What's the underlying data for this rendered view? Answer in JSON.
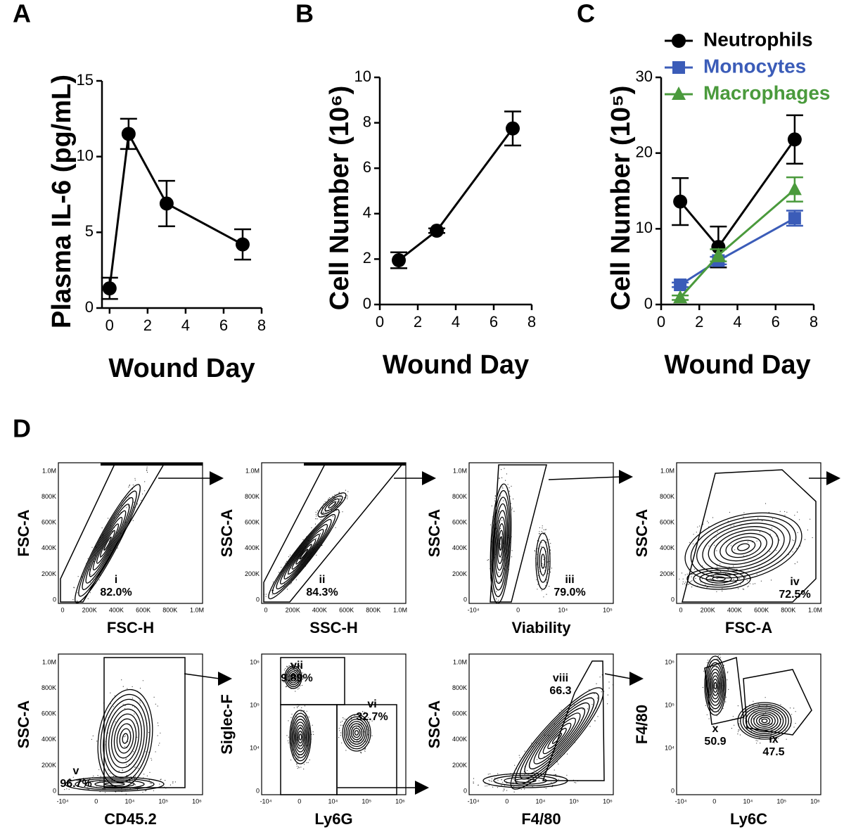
{
  "panel_labels": [
    "A",
    "B",
    "C",
    "D"
  ],
  "chart_data": [
    {
      "type": "line",
      "ylabel": "Plasma IL-6 (pg/mL)",
      "xlabel": "Wound Day",
      "x": [
        0,
        1,
        3,
        7
      ],
      "xlim": [
        -0.4,
        8
      ],
      "xticks": [
        0,
        2,
        4,
        6,
        8
      ],
      "ylim": [
        0,
        15
      ],
      "yticks": [
        0,
        5,
        10,
        15
      ],
      "series": [
        {
          "color": "#000000",
          "marker": "circle",
          "values": [
            1.3,
            11.5,
            6.9,
            4.2
          ],
          "errors": [
            0.7,
            1.0,
            1.5,
            1.0
          ]
        }
      ]
    },
    {
      "type": "line",
      "ylabel": "Cell Number (10⁶)",
      "xlabel": "Wound Day",
      "x": [
        1,
        3,
        7
      ],
      "xlim": [
        0,
        8
      ],
      "xticks": [
        0,
        2,
        4,
        6,
        8
      ],
      "ylim": [
        0,
        10
      ],
      "yticks": [
        0,
        2,
        4,
        6,
        8,
        10
      ],
      "series": [
        {
          "color": "#000000",
          "marker": "circle",
          "values": [
            1.95,
            3.25,
            7.75
          ],
          "errors": [
            0.35,
            0.1,
            0.75
          ]
        }
      ]
    },
    {
      "type": "line",
      "ylabel": "Cell Number (10⁵)",
      "xlabel": "Wound Day",
      "legend": "top-right",
      "x": [
        1,
        3,
        7
      ],
      "xlim": [
        0,
        8
      ],
      "xticks": [
        0,
        2,
        4,
        6,
        8
      ],
      "ylim": [
        0,
        30
      ],
      "yticks": [
        0,
        10,
        20,
        30
      ],
      "series": [
        {
          "name": "Neutrophils",
          "color": "#000000",
          "marker": "circle",
          "values": [
            13.6,
            7.6,
            21.8
          ],
          "errors": [
            3.1,
            2.7,
            3.2
          ]
        },
        {
          "name": "Monocytes",
          "color": "#3b5cb8",
          "marker": "square",
          "values": [
            2.6,
            5.8,
            11.4
          ],
          "errors": [
            0.3,
            0.5,
            1.0
          ]
        },
        {
          "name": "Macrophages",
          "color": "#4a9a3c",
          "marker": "triangle",
          "values": [
            0.9,
            6.5,
            15.2
          ],
          "errors": [
            0.3,
            0.8,
            1.6
          ]
        }
      ]
    }
  ],
  "flow_panels": [
    {
      "xlabel": "FSC-H",
      "ylabel": "FSC-A",
      "xticks": [
        "0",
        "200K",
        "400K",
        "600K",
        "800K",
        "1.0M"
      ],
      "yticks": [
        "0",
        "200K",
        "400K",
        "600K",
        "800K",
        "1.0M"
      ],
      "gates": [
        {
          "name": "i",
          "value": "82.0%"
        }
      ]
    },
    {
      "xlabel": "SSC-H",
      "ylabel": "SSC-A",
      "xticks": [
        "0",
        "200K",
        "400K",
        "600K",
        "800K",
        "1.0M"
      ],
      "yticks": [
        "0",
        "200K",
        "400K",
        "600K",
        "800K",
        "1.0M"
      ],
      "gates": [
        {
          "name": "ii",
          "value": "84.3%"
        }
      ]
    },
    {
      "xlabel": "Viability",
      "ylabel": "SSC-A",
      "xticks": [
        "-10⁴",
        "0",
        "10⁴",
        "10⁵"
      ],
      "yticks": [
        "0",
        "200K",
        "400K",
        "600K",
        "800K",
        "1.0M"
      ],
      "gates": [
        {
          "name": "iii",
          "value": "79.0%"
        }
      ]
    },
    {
      "xlabel": "FSC-A",
      "ylabel": "SSC-A",
      "xticks": [
        "0",
        "200K",
        "400K",
        "600K",
        "800K",
        "1.0M"
      ],
      "yticks": [
        "0",
        "200K",
        "400K",
        "600K",
        "800K",
        "1.0M"
      ],
      "gates": [
        {
          "name": "iv",
          "value": "72.5%"
        }
      ]
    },
    {
      "xlabel": "CD45.2",
      "ylabel": "SSC-A",
      "xticks": [
        "-10⁴",
        "0",
        "10⁴",
        "10⁵",
        "10⁶"
      ],
      "yticks": [
        "0",
        "200K",
        "400K",
        "600K",
        "800K",
        "1.0M"
      ],
      "gates": [
        {
          "name": "v",
          "value": "96.7%"
        }
      ]
    },
    {
      "xlabel": "Ly6G",
      "ylabel": "Siglec-F",
      "xticks": [
        "-10⁴",
        "0",
        "10⁴",
        "10⁵",
        "10⁶"
      ],
      "yticks": [
        "0",
        "10⁴",
        "10⁵",
        "10⁶"
      ],
      "gates": [
        {
          "name": "vii",
          "value": "9.89%"
        },
        {
          "name": "vi",
          "value": "32.7%"
        }
      ]
    },
    {
      "xlabel": "F4/80",
      "ylabel": "SSC-A",
      "xticks": [
        "-10⁴",
        "0",
        "10⁴",
        "10⁵",
        "10⁶"
      ],
      "yticks": [
        "0",
        "200K",
        "400K",
        "600K",
        "800K",
        "1.0M"
      ],
      "gates": [
        {
          "name": "viii",
          "value": "66.3"
        }
      ]
    },
    {
      "xlabel": "Ly6C",
      "ylabel": "F4/80",
      "xticks": [
        "-10⁴",
        "0",
        "10⁴",
        "10⁵",
        "10⁶"
      ],
      "yticks": [
        "0",
        "10⁴",
        "10⁵",
        "10⁶"
      ],
      "gates": [
        {
          "name": "x",
          "value": "50.9"
        },
        {
          "name": "ix",
          "value": "47.5"
        }
      ]
    }
  ]
}
